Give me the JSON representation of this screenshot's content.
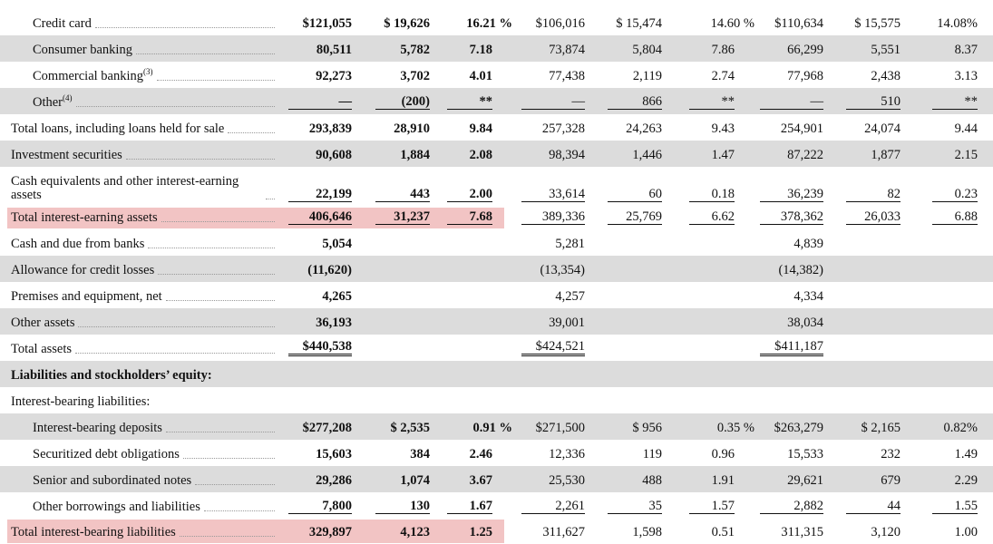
{
  "table": {
    "rows": [
      {
        "label": "Credit card",
        "cells": [
          "$121,055",
          "$ 19,626",
          "16.21 %",
          "$106,016",
          "$ 15,474",
          "14.60 %",
          "$110,634",
          "$ 15,575",
          "14.08%"
        ]
      },
      {
        "label": "Consumer banking",
        "cells": [
          "80,511",
          "5,782",
          "7.18",
          "73,874",
          "5,804",
          "7.86",
          "66,299",
          "5,551",
          "8.37"
        ]
      },
      {
        "label": "Commercial banking",
        "sup": "(3)",
        "cells": [
          "92,273",
          "3,702",
          "4.01",
          "77,438",
          "2,119",
          "2.74",
          "77,968",
          "2,438",
          "3.13"
        ]
      },
      {
        "label": "Other",
        "sup": "(4)",
        "cells": [
          "—",
          "(200)",
          "**",
          "—",
          "866",
          "**",
          "—",
          "510",
          "**"
        ]
      },
      {
        "label": "Total loans, including loans held for sale",
        "cells": [
          "293,839",
          "28,910",
          "9.84",
          "257,328",
          "24,263",
          "9.43",
          "254,901",
          "24,074",
          "9.44"
        ]
      },
      {
        "label": "Investment securities",
        "cells": [
          "90,608",
          "1,884",
          "2.08",
          "98,394",
          "1,446",
          "1.47",
          "87,222",
          "1,877",
          "2.15"
        ]
      },
      {
        "label": "Cash equivalents and other interest-earning assets",
        "cells": [
          "22,199",
          "443",
          "2.00",
          "33,614",
          "60",
          "0.18",
          "36,239",
          "82",
          "0.23"
        ]
      },
      {
        "label": "Total interest-earning assets",
        "cells": [
          "406,646",
          "31,237",
          "7.68",
          "389,336",
          "25,769",
          "6.62",
          "378,362",
          "26,033",
          "6.88"
        ]
      },
      {
        "label": "Cash and due from banks",
        "cells": [
          "5,054",
          null,
          null,
          "5,281",
          null,
          null,
          "4,839",
          null,
          null
        ]
      },
      {
        "label": "Allowance for credit losses",
        "cells": [
          "(11,620)",
          null,
          null,
          "(13,354)",
          null,
          null,
          "(14,382)",
          null,
          null
        ]
      },
      {
        "label": "Premises and equipment, net",
        "cells": [
          "4,265",
          null,
          null,
          "4,257",
          null,
          null,
          "4,334",
          null,
          null
        ]
      },
      {
        "label": "Other assets",
        "cells": [
          "36,193",
          null,
          null,
          "39,001",
          null,
          null,
          "38,034",
          null,
          null
        ]
      },
      {
        "label": "Total assets",
        "cells": [
          "$440,538",
          null,
          null,
          "$424,521",
          null,
          null,
          "$411,187",
          null,
          null
        ]
      },
      {
        "label": "Liabilities and stockholders’ equity:"
      },
      {
        "label": "Interest-bearing liabilities:"
      },
      {
        "label": "Interest-bearing deposits",
        "cells": [
          "$277,208",
          "$ 2,535",
          "0.91 %",
          "$271,500",
          "$ 956",
          "0.35 %",
          "$263,279",
          "$ 2,165",
          "0.82%"
        ]
      },
      {
        "label": "Securitized debt obligations",
        "cells": [
          "15,603",
          "384",
          "2.46",
          "12,336",
          "119",
          "0.96",
          "15,533",
          "232",
          "1.49"
        ]
      },
      {
        "label": "Senior and subordinated notes",
        "cells": [
          "29,286",
          "1,074",
          "3.67",
          "25,530",
          "488",
          "1.91",
          "29,621",
          "679",
          "2.29"
        ]
      },
      {
        "label": "Other borrowings and liabilities",
        "cells": [
          "7,800",
          "130",
          "1.67",
          "2,261",
          "35",
          "1.57",
          "2,882",
          "44",
          "1.55"
        ]
      },
      {
        "label": "Total interest-bearing liabilities",
        "cells": [
          "329,897",
          "4,123",
          "1.25",
          "311,627",
          "1,598",
          "0.51",
          "311,315",
          "3,120",
          "1.00"
        ]
      }
    ]
  }
}
